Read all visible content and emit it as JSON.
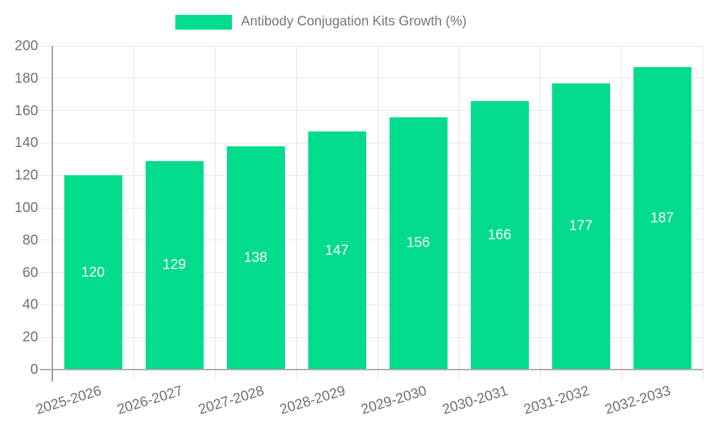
{
  "legend": {
    "label": "Antibody Conjugation Kits Growth (%)",
    "swatch_icon": "legend-color-swatch"
  },
  "chart_data": {
    "type": "bar",
    "title": "Antibody Conjugation Kits Growth (%)",
    "categories": [
      "2025-2026",
      "2026-2027",
      "2027-2028",
      "2028-2029",
      "2029-2030",
      "2030-2031",
      "2031-2032",
      "2032-2033"
    ],
    "values": [
      120,
      129,
      138,
      147,
      156,
      166,
      177,
      187
    ],
    "xlabel": "",
    "ylabel": "",
    "ylim": [
      0,
      200
    ],
    "yticks": [
      0,
      20,
      40,
      60,
      80,
      100,
      120,
      140,
      160,
      180,
      200
    ],
    "grid": true,
    "legend_position": "top-center",
    "bar_color": "#00DC8C",
    "value_label_color": "#ffffff",
    "axis_text_color": "#707070",
    "legend_text_color": "#757575",
    "gridline_color": "#E5E5E5",
    "axis_line_color": "#9B9B9B",
    "x_label_rotation_deg": -17
  }
}
